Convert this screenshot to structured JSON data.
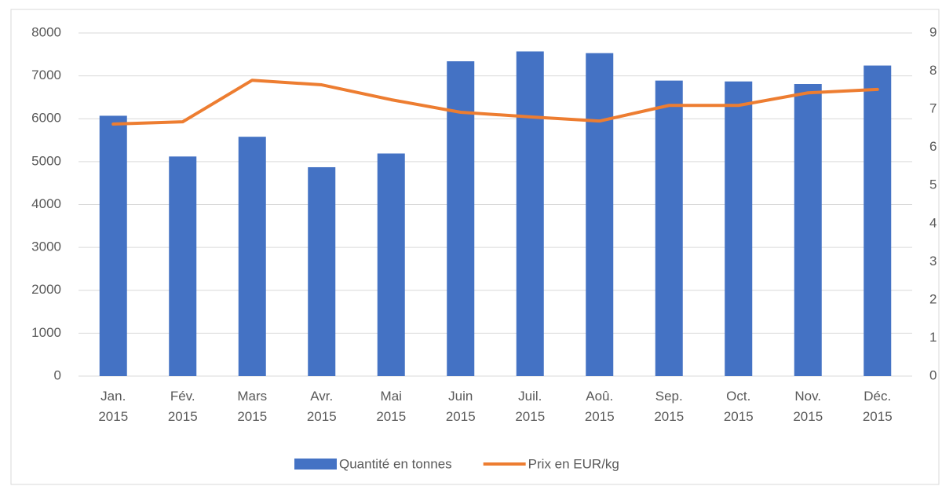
{
  "chart_data": {
    "type": "bar-line",
    "categories": [
      "Jan. 2015",
      "Fév. 2015",
      "Mars 2015",
      "Avr. 2015",
      "Mai 2015",
      "Juin 2015",
      "Juil. 2015",
      "Aoû. 2015",
      "Sep. 2015",
      "Oct. 2015",
      "Nov. 2015",
      "Déc. 2015"
    ],
    "series": [
      {
        "name": "Quantité en tonnes",
        "type": "bar",
        "color": "#4472c4",
        "values": [
          6070,
          5120,
          5580,
          4870,
          5190,
          7340,
          7570,
          7530,
          6890,
          6870,
          6810,
          7240
        ]
      },
      {
        "name": "Prix en EUR/kg",
        "type": "line",
        "axis": "y2",
        "color": "#ed7d31",
        "values": [
          6.61,
          6.67,
          7.76,
          7.64,
          7.25,
          6.92,
          6.8,
          6.69,
          7.1,
          7.1,
          7.43,
          7.52
        ]
      }
    ],
    "ylim": [
      0,
      8000
    ],
    "yticks": [
      0,
      1000,
      2000,
      3000,
      4000,
      5000,
      6000,
      7000,
      8000
    ],
    "y2lim": [
      0,
      9
    ],
    "y2ticks": [
      0,
      1,
      2,
      3,
      4,
      5,
      6,
      7,
      8,
      9
    ],
    "grid": true,
    "legend": "bottom"
  }
}
